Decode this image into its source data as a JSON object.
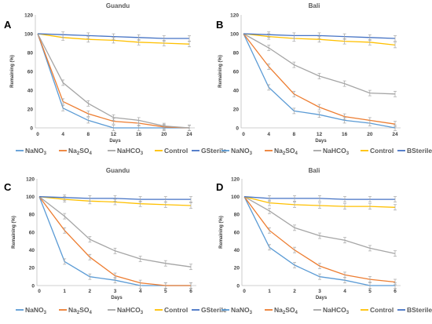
{
  "chart_data": [
    {
      "type": "line",
      "panel_letter": "A",
      "title": "Guandu",
      "xlabel": "Days",
      "ylabel": "Remaining (%)",
      "x": [
        0,
        4,
        8,
        12,
        16,
        20,
        24
      ],
      "xticks": [
        "0",
        "4",
        "8",
        "12",
        "16",
        "20",
        "24"
      ],
      "ylim": [
        0,
        120
      ],
      "yticks": [
        "0",
        "20",
        "40",
        "60",
        "80",
        "100",
        "120"
      ],
      "grid": false,
      "legend_position": "bottom",
      "series": [
        {
          "name": "NaNO3",
          "name_main": "NaNO",
          "name_sub": "3",
          "color": "#5b9bd5",
          "values": [
            100,
            21,
            8,
            0,
            0,
            0,
            0
          ]
        },
        {
          "name": "Na2SO4",
          "name_main": "Na",
          "name_sub": "2",
          "name_tail": "SO",
          "name_sub2": "4",
          "color": "#ed7d31",
          "values": [
            100,
            28,
            15,
            7,
            5,
            1,
            0
          ]
        },
        {
          "name": "NaHCO3",
          "name_main": "NaHCO",
          "name_sub": "3",
          "color": "#a5a5a5",
          "values": [
            100,
            48,
            26,
            11,
            8,
            2,
            0
          ]
        },
        {
          "name": "Control",
          "name_main": "Control",
          "color": "#ffc000",
          "values": [
            100,
            96,
            94,
            93,
            91,
            90,
            89
          ]
        },
        {
          "name": "GSterile",
          "name_main": "GSterile",
          "color": "#4472c4",
          "values": [
            100,
            99,
            98,
            97,
            96,
            95,
            95
          ]
        }
      ]
    },
    {
      "type": "line",
      "panel_letter": "B",
      "title": "Bali",
      "xlabel": "Days",
      "ylabel": "Remaining (%)",
      "x": [
        0,
        4,
        8,
        12,
        16,
        20,
        24
      ],
      "xticks": [
        "0",
        "4",
        "8",
        "12",
        "16",
        "20",
        "24"
      ],
      "ylim": [
        0,
        120
      ],
      "yticks": [
        "0",
        "20",
        "40",
        "60",
        "80",
        "100",
        "120"
      ],
      "grid": false,
      "legend_position": "bottom",
      "series": [
        {
          "name": "NaNO3",
          "name_main": "NaNO",
          "name_sub": "3",
          "color": "#5b9bd5",
          "values": [
            100,
            43,
            18,
            14,
            8,
            5,
            0
          ]
        },
        {
          "name": "Na2SO4",
          "name_main": "Na",
          "name_sub": "2",
          "name_tail": "SO",
          "name_sub2": "4",
          "color": "#ed7d31",
          "values": [
            100,
            65,
            36,
            22,
            12,
            8,
            4
          ]
        },
        {
          "name": "NaHCO3",
          "name_main": "NaHCO",
          "name_sub": "3",
          "color": "#a5a5a5",
          "values": [
            100,
            85,
            67,
            55,
            47,
            37,
            36
          ]
        },
        {
          "name": "Control",
          "name_main": "Control",
          "color": "#ffc000",
          "values": [
            100,
            97,
            95,
            94,
            92,
            91,
            88
          ]
        },
        {
          "name": "BSterile",
          "name_main": "BSterile",
          "color": "#4472c4",
          "values": [
            100,
            99,
            98,
            98,
            97,
            96,
            95
          ]
        }
      ]
    },
    {
      "type": "line",
      "panel_letter": "C",
      "title": "Guandu",
      "xlabel": "Days",
      "ylabel": "Remaining (%)",
      "x": [
        0,
        1,
        2,
        3,
        4,
        5,
        6
      ],
      "xticks": [
        "0",
        "1",
        "2",
        "3",
        "4",
        "5",
        "6"
      ],
      "ylim": [
        0,
        120
      ],
      "yticks": [
        "0",
        "20",
        "40",
        "60",
        "80",
        "100",
        "120"
      ],
      "grid": false,
      "legend_position": "bottom",
      "series": [
        {
          "name": "NaNO3",
          "name_main": "NaNO",
          "name_sub": "3",
          "color": "#5b9bd5",
          "values": [
            100,
            27,
            10,
            6,
            0,
            0,
            0
          ]
        },
        {
          "name": "Na2SO4",
          "name_main": "Na",
          "name_sub": "2",
          "name_tail": "SO",
          "name_sub2": "4",
          "color": "#ed7d31",
          "values": [
            100,
            62,
            32,
            11,
            3,
            0,
            0
          ]
        },
        {
          "name": "NaHCO3",
          "name_main": "NaHCO",
          "name_sub": "3",
          "color": "#a5a5a5",
          "values": [
            100,
            78,
            52,
            39,
            30,
            25,
            21
          ]
        },
        {
          "name": "Control",
          "name_main": "Control",
          "color": "#ffc000",
          "values": [
            100,
            97,
            95,
            94,
            92,
            91,
            90
          ]
        },
        {
          "name": "GSterile",
          "name_main": "GSterile",
          "color": "#4472c4",
          "values": [
            100,
            99,
            98,
            98,
            97,
            97,
            97
          ]
        }
      ]
    },
    {
      "type": "line",
      "panel_letter": "D",
      "title": "Bali",
      "xlabel": "Days",
      "ylabel": "Remaining (%)",
      "x": [
        0,
        1,
        2,
        3,
        4,
        5,
        6
      ],
      "xticks": [
        "0",
        "1",
        "2",
        "3",
        "4",
        "5",
        "6"
      ],
      "ylim": [
        0,
        120
      ],
      "yticks": [
        "0",
        "20",
        "40",
        "60",
        "80",
        "100",
        "120"
      ],
      "grid": false,
      "legend_position": "bottom",
      "series": [
        {
          "name": "NaNO3",
          "name_main": "NaNO",
          "name_sub": "3",
          "color": "#5b9bd5",
          "values": [
            100,
            43,
            23,
            10,
            6,
            0,
            0
          ]
        },
        {
          "name": "Na2SO4",
          "name_main": "Na",
          "name_sub": "2",
          "name_tail": "SO",
          "name_sub2": "4",
          "color": "#ed7d31",
          "values": [
            100,
            62,
            40,
            22,
            12,
            7,
            4
          ]
        },
        {
          "name": "NaHCO3",
          "name_main": "NaHCO",
          "name_sub": "3",
          "color": "#a5a5a5",
          "values": [
            100,
            84,
            65,
            56,
            51,
            42,
            36
          ]
        },
        {
          "name": "Control",
          "name_main": "Control",
          "color": "#ffc000",
          "values": [
            100,
            93,
            91,
            90,
            89,
            89,
            88
          ]
        },
        {
          "name": "BSterile",
          "name_main": "BSterile",
          "color": "#4472c4",
          "values": [
            100,
            98,
            98,
            98,
            97,
            97,
            97
          ]
        }
      ]
    }
  ]
}
